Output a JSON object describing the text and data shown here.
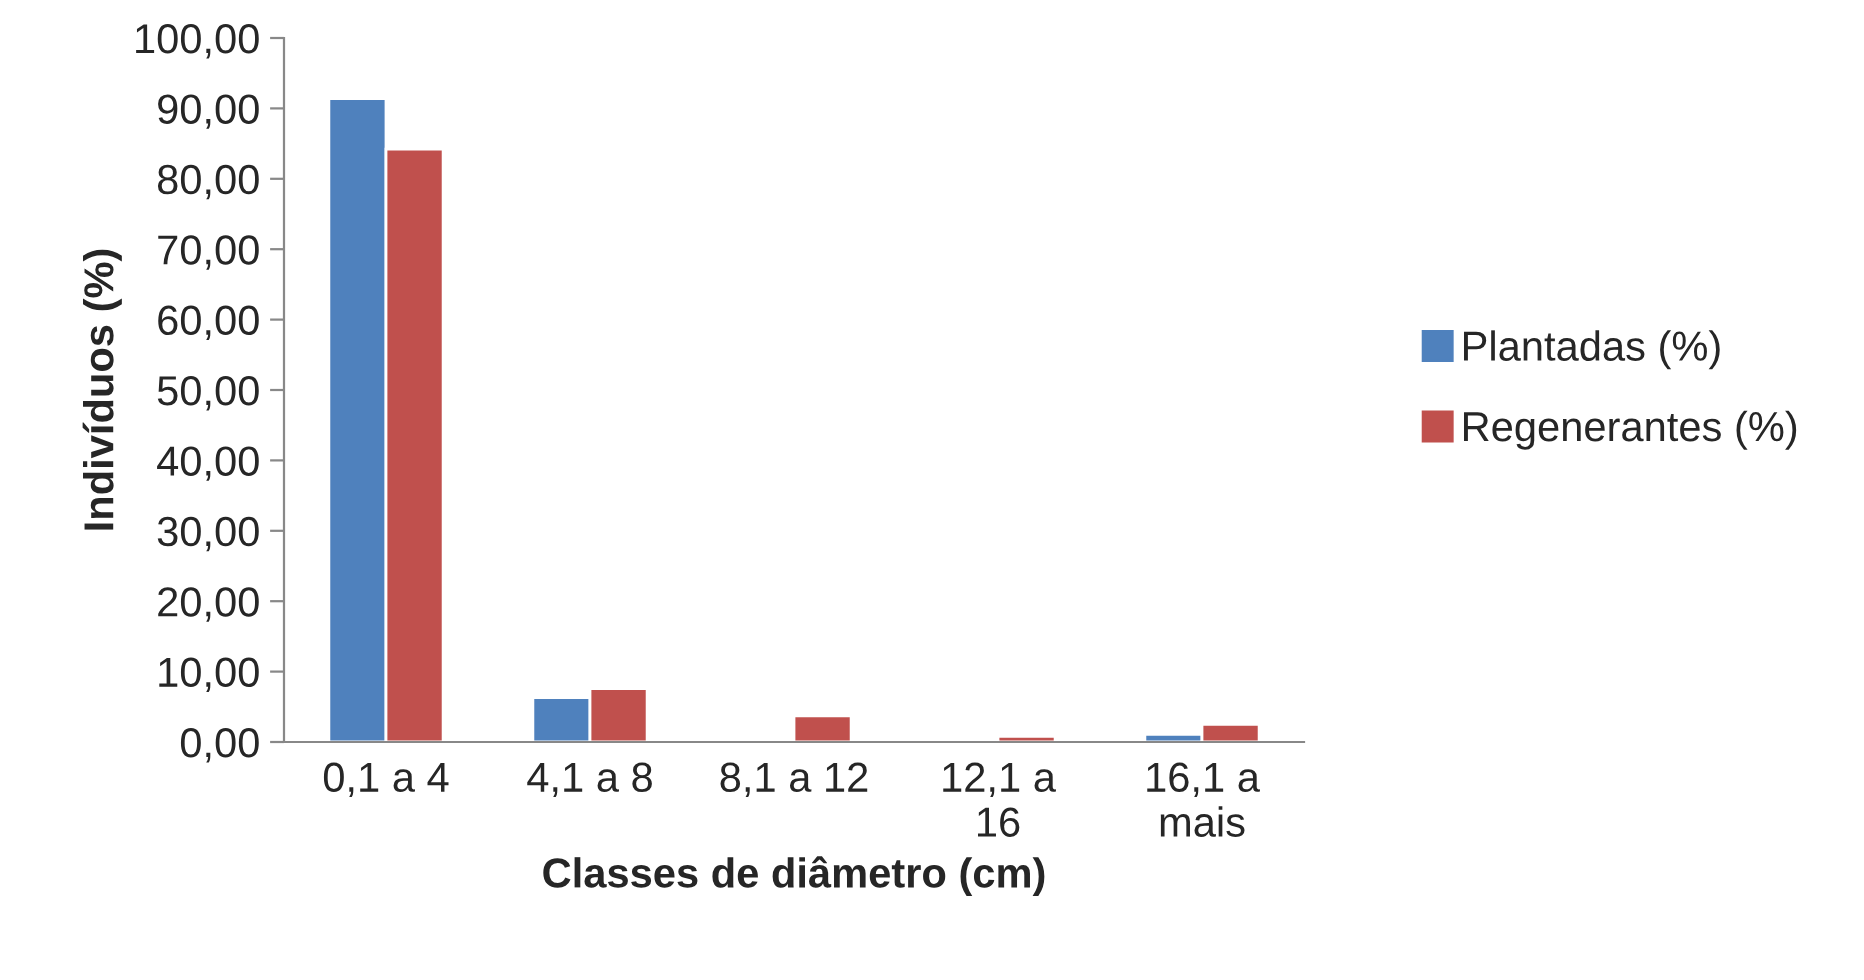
{
  "chart_data": {
    "type": "bar",
    "xlabel": "Classes de diâmetro (cm)",
    "ylabel": "Indivíduos (%)",
    "categories": [
      "0,1 a 4",
      "4,1 a 8",
      "8,1 a 12",
      "12,1 a\n16",
      "16,1 a\nmais"
    ],
    "series": [
      {
        "name": "Plantadas (%)",
        "color": "#4f81bd",
        "values": [
          91.4,
          6.3,
          null,
          0.4,
          1.1
        ]
      },
      {
        "name": "Regenerantes (%)",
        "color": "#c0504d",
        "values": [
          84.2,
          7.6,
          3.7,
          0.8,
          2.5
        ]
      }
    ],
    "ylim": [
      0,
      100
    ],
    "yticks": [
      {
        "value": 0,
        "label": "0,00"
      },
      {
        "value": 10,
        "label": "10,00"
      },
      {
        "value": 20,
        "label": "20,00"
      },
      {
        "value": 30,
        "label": "30,00"
      },
      {
        "value": 40,
        "label": "40,00"
      },
      {
        "value": 50,
        "label": "50,00"
      },
      {
        "value": 60,
        "label": "60,00"
      },
      {
        "value": 70,
        "label": "70,00"
      },
      {
        "value": 80,
        "label": "80,00"
      },
      {
        "value": 90,
        "label": "90,00"
      },
      {
        "value": 100,
        "label": "100,00"
      }
    ],
    "grid": false,
    "legend": "right"
  }
}
